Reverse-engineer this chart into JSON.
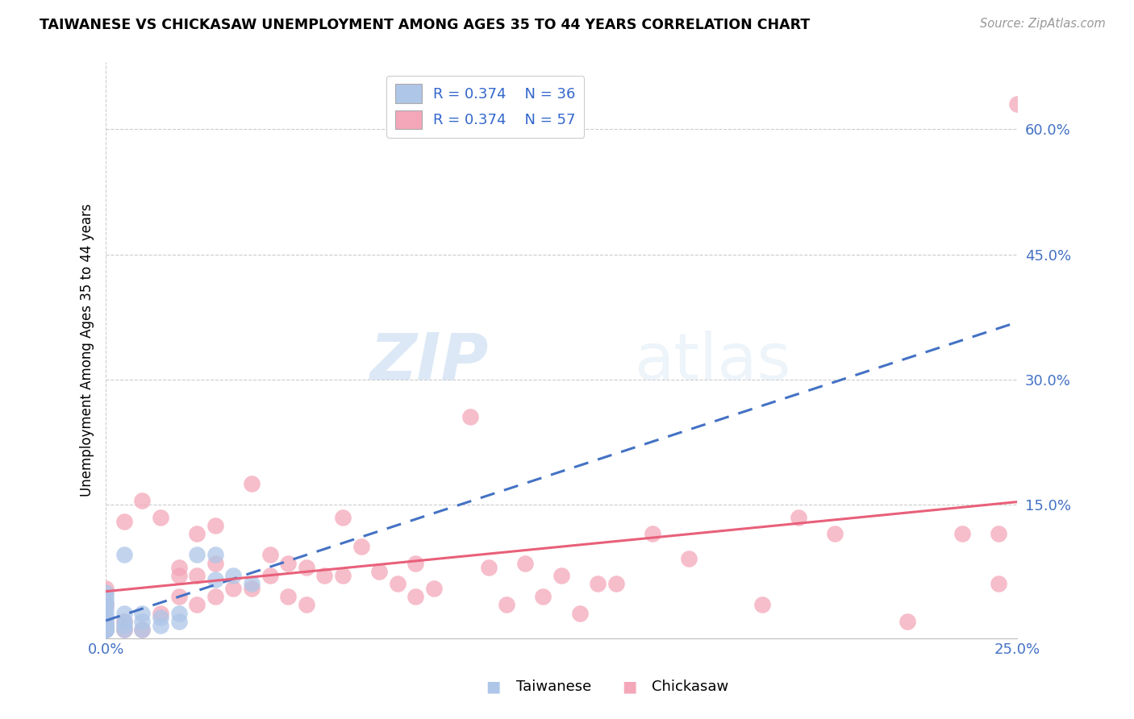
{
  "title": "TAIWANESE VS CHICKASAW UNEMPLOYMENT AMONG AGES 35 TO 44 YEARS CORRELATION CHART",
  "source": "Source: ZipAtlas.com",
  "tick_color": "#4472c4",
  "ylabel": "Unemployment Among Ages 35 to 44 years",
  "xlim": [
    0.0,
    0.25
  ],
  "ylim": [
    -0.01,
    0.68
  ],
  "xtick_vals": [
    0.0,
    0.25
  ],
  "xtick_labels": [
    "0.0%",
    "25.0%"
  ],
  "ytick_vals": [
    0.15,
    0.3,
    0.45,
    0.6
  ],
  "ytick_labels": [
    "15.0%",
    "30.0%",
    "45.0%",
    "60.0%"
  ],
  "taiwanese_color": "#aec6e8",
  "taiwanese_edge": "#7aaad0",
  "chickasaw_color": "#f4a7b9",
  "chickasaw_edge": "#e07090",
  "taiwanese_line_color": "#4472c4",
  "chickasaw_line_color": "#e8607a",
  "taiwanese_R": 0.374,
  "taiwanese_N": 36,
  "chickasaw_R": 0.374,
  "chickasaw_N": 57,
  "watermark_zip": "ZIP",
  "watermark_atlas": "atlas",
  "legend_R_color": "#2255cc",
  "legend_N_color": "#22aa22",
  "taiwanese_x": [
    0.0,
    0.0,
    0.0,
    0.0,
    0.0,
    0.0,
    0.0,
    0.0,
    0.0,
    0.0,
    0.0,
    0.0,
    0.005,
    0.005,
    0.005,
    0.005,
    0.005,
    0.01,
    0.01,
    0.01,
    0.015,
    0.015,
    0.02,
    0.02,
    0.025,
    0.03,
    0.03,
    0.035,
    0.04,
    0.0,
    0.0,
    0.0,
    0.0,
    0.0,
    0.0,
    0.0
  ],
  "taiwanese_y": [
    0.0,
    0.0,
    0.0,
    0.005,
    0.01,
    0.015,
    0.02,
    0.025,
    0.03,
    0.035,
    0.04,
    0.045,
    0.0,
    0.005,
    0.01,
    0.02,
    0.09,
    0.0,
    0.01,
    0.02,
    0.005,
    0.015,
    0.01,
    0.02,
    0.09,
    0.06,
    0.09,
    0.065,
    0.055,
    0.0,
    0.0,
    0.0,
    0.0,
    0.005,
    0.005,
    0.005
  ],
  "chickasaw_x": [
    0.0,
    0.0,
    0.0,
    0.0,
    0.005,
    0.005,
    0.005,
    0.01,
    0.01,
    0.015,
    0.015,
    0.02,
    0.02,
    0.02,
    0.025,
    0.025,
    0.025,
    0.03,
    0.03,
    0.03,
    0.035,
    0.04,
    0.04,
    0.045,
    0.045,
    0.05,
    0.05,
    0.055,
    0.055,
    0.06,
    0.065,
    0.065,
    0.07,
    0.075,
    0.08,
    0.085,
    0.085,
    0.09,
    0.1,
    0.105,
    0.11,
    0.115,
    0.12,
    0.125,
    0.13,
    0.135,
    0.14,
    0.15,
    0.16,
    0.18,
    0.19,
    0.2,
    0.22,
    0.235,
    0.245,
    0.245,
    0.25
  ],
  "chickasaw_y": [
    0.0,
    0.01,
    0.03,
    0.05,
    0.0,
    0.01,
    0.13,
    0.0,
    0.155,
    0.02,
    0.135,
    0.04,
    0.065,
    0.075,
    0.03,
    0.065,
    0.115,
    0.04,
    0.08,
    0.125,
    0.05,
    0.05,
    0.175,
    0.065,
    0.09,
    0.04,
    0.08,
    0.03,
    0.075,
    0.065,
    0.065,
    0.135,
    0.1,
    0.07,
    0.055,
    0.04,
    0.08,
    0.05,
    0.255,
    0.075,
    0.03,
    0.08,
    0.04,
    0.065,
    0.02,
    0.055,
    0.055,
    0.115,
    0.085,
    0.03,
    0.135,
    0.115,
    0.01,
    0.115,
    0.055,
    0.115,
    0.63
  ]
}
